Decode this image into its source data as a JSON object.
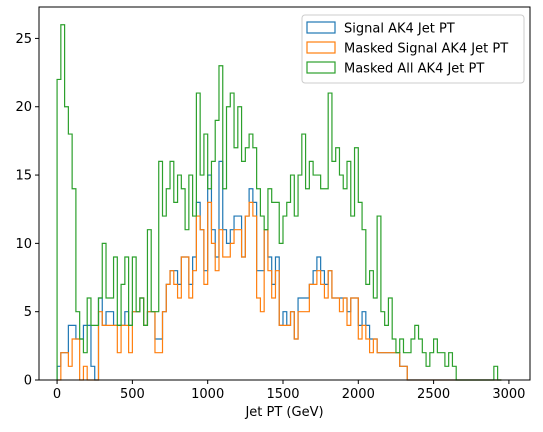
{
  "chart_data": {
    "type": "histogram",
    "xlabel": "Jet PT (GeV)",
    "ylabel": "",
    "xlim": [
      -120,
      3140
    ],
    "ylim": [
      0,
      27.3
    ],
    "xticks": [
      0,
      500,
      1000,
      1500,
      2000,
      2500,
      3000
    ],
    "yticks": [
      0,
      5,
      10,
      15,
      20,
      25
    ],
    "legend_location": "top-right",
    "bin_edges": [
      0,
      25,
      50,
      75,
      100,
      125,
      150,
      175,
      200,
      225,
      250,
      275,
      300,
      325,
      350,
      375,
      400,
      425,
      450,
      475,
      500,
      525,
      550,
      575,
      600,
      625,
      650,
      675,
      700,
      725,
      750,
      775,
      800,
      825,
      850,
      875,
      900,
      925,
      950,
      975,
      1000,
      1025,
      1050,
      1075,
      1100,
      1125,
      1150,
      1175,
      1200,
      1225,
      1250,
      1275,
      1300,
      1325,
      1350,
      1375,
      1400,
      1425,
      1450,
      1475,
      1500,
      1525,
      1550,
      1575,
      1600,
      1625,
      1650,
      1675,
      1700,
      1725,
      1750,
      1775,
      1800,
      1825,
      1850,
      1875,
      1900,
      1925,
      1950,
      1975,
      2000,
      2025,
      2050,
      2075,
      2100,
      2125,
      2150,
      2175,
      2200,
      2225,
      2250,
      2275,
      2300,
      2325,
      2350,
      2375,
      2400,
      2425,
      2450,
      2475,
      2500,
      2525,
      2550,
      2575,
      2600,
      2625,
      2650,
      2675,
      2700,
      2725,
      2750,
      2775,
      2800,
      2825,
      2850,
      2875,
      2900,
      2925,
      2950
    ],
    "series": [
      {
        "name": "Signal AK4 Jet PT",
        "color": "#1f77b4",
        "values": [
          1,
          2,
          2,
          4,
          4,
          3,
          3,
          4,
          4,
          1,
          0,
          6,
          4,
          5,
          5,
          4,
          4,
          4,
          5,
          4,
          5,
          5,
          6,
          4,
          5,
          5,
          3,
          3,
          5,
          7,
          8,
          8,
          7,
          9,
          9,
          7,
          9,
          13,
          11,
          8,
          15,
          11,
          9,
          16,
          11,
          10,
          11,
          12,
          12,
          9,
          12,
          14,
          13,
          8,
          8,
          11,
          9,
          7,
          9,
          4,
          5,
          4,
          5,
          3,
          6,
          6,
          6,
          7,
          8,
          9,
          8,
          7,
          8,
          6,
          6,
          6,
          6,
          5,
          6,
          6,
          4,
          5,
          4,
          3,
          3,
          2,
          2,
          2,
          2,
          2,
          2,
          1,
          1,
          0,
          0,
          0,
          0,
          0,
          0,
          0,
          0,
          0,
          0,
          0,
          0,
          0,
          0,
          0,
          0,
          0,
          0,
          0,
          0,
          0,
          0,
          0,
          0,
          0
        ]
      },
      {
        "name": "Masked Signal AK4 Jet PT",
        "color": "#ff7f0e",
        "values": [
          0,
          2,
          2,
          1,
          3,
          3,
          0,
          1,
          0,
          0,
          0,
          5,
          4,
          4,
          4,
          4,
          2,
          4,
          4,
          2,
          5,
          5,
          6,
          4,
          5,
          5,
          2,
          2,
          5,
          7,
          8,
          7,
          6,
          9,
          9,
          6,
          8,
          12,
          11,
          7,
          13,
          10,
          8,
          11,
          9,
          9,
          10,
          11,
          11,
          9,
          12,
          13,
          12,
          6,
          5,
          11,
          8,
          6,
          8,
          4,
          4,
          4,
          5,
          3,
          5,
          5,
          5,
          7,
          7,
          8,
          7,
          6,
          8,
          6,
          6,
          5,
          6,
          4,
          6,
          6,
          3,
          4,
          3,
          2,
          3,
          2,
          2,
          2,
          2,
          2,
          2,
          1,
          1,
          0,
          0,
          0,
          0,
          0,
          0,
          0,
          0,
          0,
          0,
          0,
          0,
          0,
          0,
          0,
          0,
          0,
          0,
          0,
          0,
          0,
          0,
          0,
          0,
          0
        ]
      },
      {
        "name": "Masked All AK4 Jet PT",
        "color": "#2ca02c",
        "values": [
          22,
          26,
          20,
          18,
          14,
          5,
          3,
          2,
          6,
          4,
          4,
          6,
          10,
          6,
          6,
          9,
          4,
          7,
          9,
          4,
          9,
          5,
          6,
          4,
          11,
          5,
          5,
          16,
          12,
          14,
          16,
          13,
          15,
          14,
          11,
          15,
          12,
          21,
          15,
          18,
          14,
          16,
          19,
          23,
          14,
          20,
          21,
          17,
          20,
          16,
          17,
          18,
          17,
          14,
          12,
          11,
          14,
          13,
          13,
          10,
          12,
          13,
          15,
          12,
          15,
          18,
          14,
          16,
          15,
          15,
          14,
          14,
          21,
          16,
          17,
          15,
          14,
          16,
          12,
          17,
          13,
          11,
          7,
          8,
          6,
          12,
          5,
          4,
          6,
          3,
          2,
          3,
          2,
          2,
          3,
          4,
          3,
          2,
          1,
          2,
          3,
          2,
          2,
          1,
          2,
          1,
          0,
          0,
          0,
          0,
          0,
          0,
          0,
          0,
          0,
          0,
          1,
          0
        ]
      }
    ]
  }
}
